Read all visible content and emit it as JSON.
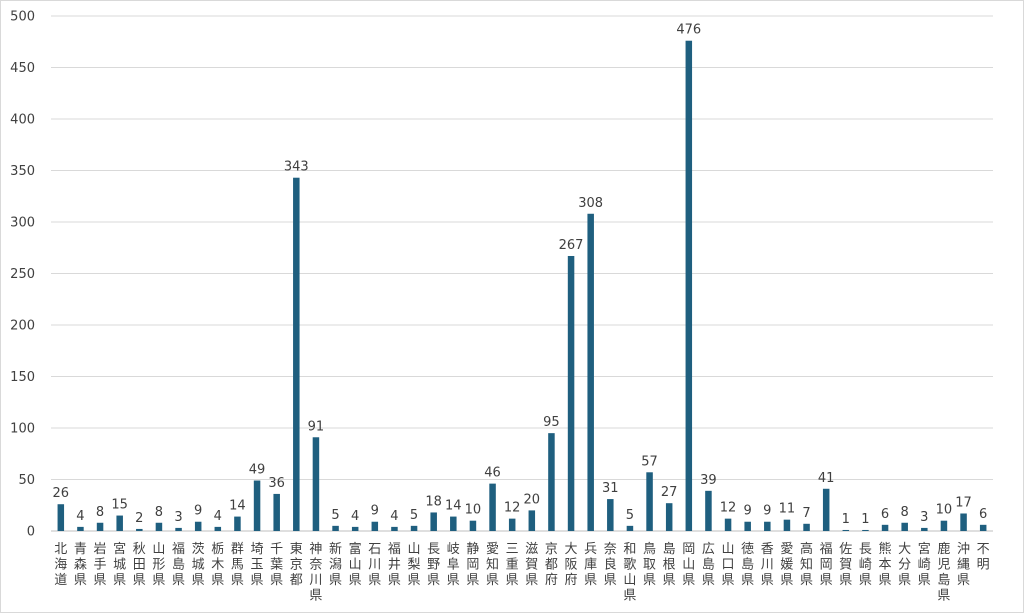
{
  "chart_data": {
    "type": "bar",
    "title": "",
    "xlabel": "",
    "ylabel": "",
    "ylim": [
      0,
      500
    ],
    "yticks": [
      0,
      50,
      100,
      150,
      200,
      250,
      300,
      350,
      400,
      450,
      500
    ],
    "grid": true,
    "legend": "none",
    "bar_color": "#1f5f7f",
    "categories": [
      "北海道",
      "青森県",
      "岩手県",
      "宮城県",
      "秋田県",
      "山形県",
      "福島県",
      "茨城県",
      "栃木県",
      "群馬県",
      "埼玉県",
      "千葉県",
      "東京都",
      "神奈川県",
      "新潟県",
      "富山県",
      "石川県",
      "福井県",
      "山梨県",
      "長野県",
      "岐阜県",
      "静岡県",
      "愛知県",
      "三重県",
      "滋賀県",
      "京都府",
      "大阪府",
      "兵庫県",
      "奈良県",
      "和歌山県",
      "鳥取県",
      "島根県",
      "岡山県",
      "広島県",
      "山口県",
      "徳島県",
      "香川県",
      "愛媛県",
      "高知県",
      "福岡県",
      "佐賀県",
      "長崎県",
      "熊本県",
      "大分県",
      "宮崎県",
      "鹿児島県",
      "沖縄県",
      "不明"
    ],
    "values": [
      26,
      4,
      8,
      15,
      2,
      8,
      3,
      9,
      4,
      14,
      49,
      36,
      343,
      91,
      5,
      4,
      9,
      4,
      5,
      18,
      14,
      10,
      46,
      12,
      20,
      95,
      267,
      308,
      31,
      5,
      57,
      27,
      476,
      39,
      12,
      9,
      9,
      11,
      7,
      41,
      1,
      1,
      6,
      8,
      3,
      10,
      17,
      6
    ]
  }
}
